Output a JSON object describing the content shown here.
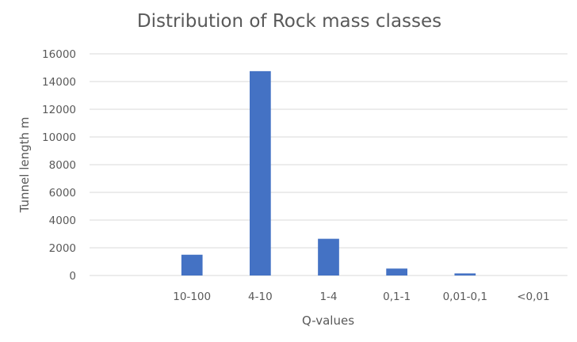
{
  "chart_data": {
    "type": "bar",
    "title": "Distribution of Rock mass classes",
    "xlabel": "Q-values",
    "ylabel": "Tunnel length m",
    "categories": [
      "",
      "10-100",
      "4-10",
      "1-4",
      "0,1-1",
      "0,01-0,1",
      "<0,01"
    ],
    "values": [
      0,
      1500,
      14750,
      2650,
      500,
      150,
      0
    ],
    "ylim": [
      0,
      16000
    ],
    "yticks": [
      "0",
      "2000",
      "4000",
      "6000",
      "8000",
      "10000",
      "12000",
      "14000",
      "16000"
    ],
    "ytick_values": [
      0,
      2000,
      4000,
      6000,
      8000,
      10000,
      12000,
      14000,
      16000
    ],
    "grid": true,
    "legend": "none",
    "bar_color": "#4472c4"
  }
}
